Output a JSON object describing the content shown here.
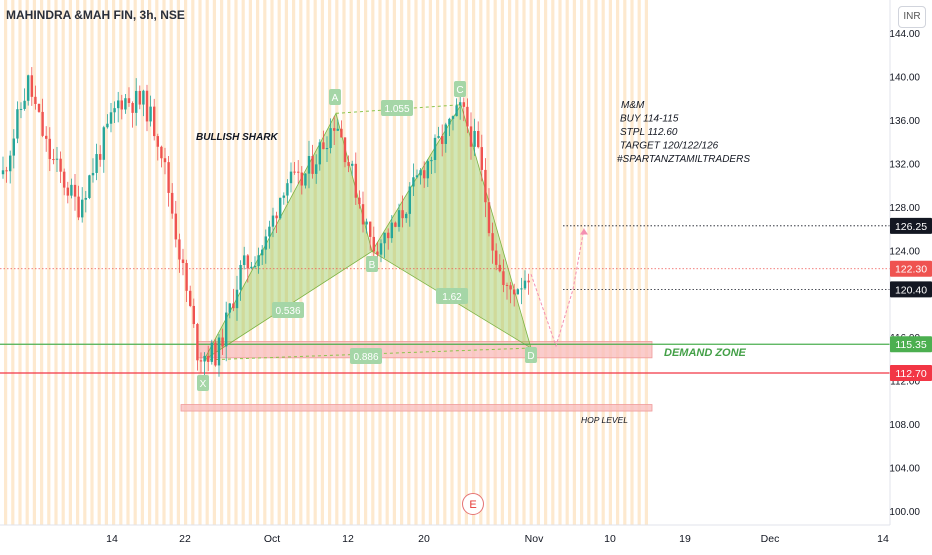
{
  "header": {
    "title": "MAHINDRA &MAH FIN, 3h, NSE",
    "currency": "INR"
  },
  "annotations": {
    "pattern_name": "BULLISH SHARK",
    "demand_zone": "DEMAND ZONE",
    "hop_level": "HOP LEVEL",
    "events_badge": "E",
    "trade_note": [
      "M&M",
      "BUY 114-115",
      "STPL 112.60",
      "TARGET 120/122/126",
      "#SPARTANZTAMILTRADERS"
    ]
  },
  "chart_data": {
    "type": "candlestick",
    "x_labels": [
      "14",
      "22",
      "Oct",
      "12",
      "20",
      "Nov",
      "10",
      "19",
      "Dec",
      "14"
    ],
    "y_ticks": [
      "144.00",
      "140.00",
      "136.00",
      "132.00",
      "128.00",
      "124.00",
      "116.00",
      "112.00",
      "108.00",
      "104.00",
      "100.00"
    ],
    "ylim": [
      99,
      146
    ],
    "last_price": 122.3,
    "levels": [
      {
        "label": "126.25",
        "value": 126.25,
        "style": "dotted",
        "color": "#131722"
      },
      {
        "label": "122.30",
        "value": 122.3,
        "style": "dotted",
        "color": "#ef5350"
      },
      {
        "label": "120.40",
        "value": 120.4,
        "style": "dotted",
        "color": "#131722"
      },
      {
        "label": "115.35",
        "value": 115.35,
        "style": "solid",
        "color": "#4caf50"
      },
      {
        "label": "112.70",
        "value": 112.7,
        "style": "solid",
        "color": "#f23645"
      }
    ],
    "zones": [
      {
        "name": "demand-zone",
        "top": 115.6,
        "bottom": 114.1
      },
      {
        "name": "hop-level",
        "top": 109.8,
        "bottom": 109.2
      }
    ],
    "pattern_points": [
      {
        "label": "X",
        "value": 113.9
      },
      {
        "label": "A",
        "value": 136.6
      },
      {
        "label": "B",
        "value": 123.9
      },
      {
        "label": "C",
        "value": 137.4
      },
      {
        "label": "D",
        "value": 115.0
      }
    ],
    "ratios": [
      "1.055",
      "0.536",
      "1.62",
      "0.886"
    ]
  },
  "colors": {
    "up": "#26a69a",
    "down": "#ef5350",
    "pattern_fill": "#8bc34a",
    "zone": "#f8bbbb",
    "session_stripe": "#fde9cf"
  }
}
